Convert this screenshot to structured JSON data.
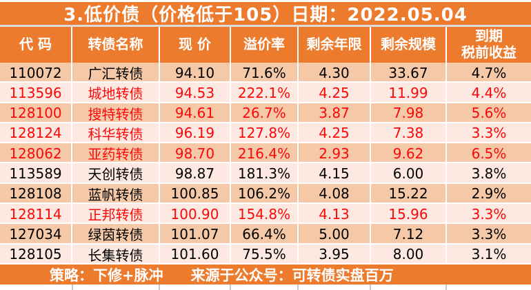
{
  "title": "3.低价债（价格低于105）日期：2022.05.04",
  "table": {
    "columns": [
      "代 码",
      "转债名称",
      "现 价",
      "溢价率",
      "剩余年限",
      "剩余规模",
      "到期\n税前收益"
    ],
    "rows": [
      {
        "code": "110072",
        "name": "广汇转债",
        "price": "94.10",
        "premium": "71.6%",
        "years": "4.30",
        "size": "33.67",
        "yield": "4.7%",
        "text": "black",
        "bg": "peach"
      },
      {
        "code": "113596",
        "name": "城地转债",
        "price": "94.53",
        "premium": "222.1%",
        "years": "4.25",
        "size": "11.99",
        "yield": "4.4%",
        "text": "red",
        "bg": "pink"
      },
      {
        "code": "128100",
        "name": "搜特转债",
        "price": "94.61",
        "premium": "26.7%",
        "years": "3.87",
        "size": "7.98",
        "yield": "5.6%",
        "text": "red",
        "bg": "peach"
      },
      {
        "code": "128124",
        "name": "科华转债",
        "price": "96.19",
        "premium": "127.8%",
        "years": "4.25",
        "size": "7.38",
        "yield": "3.3%",
        "text": "red",
        "bg": "pink"
      },
      {
        "code": "128062",
        "name": "亚药转债",
        "price": "98.70",
        "premium": "216.4%",
        "years": "2.93",
        "size": "9.62",
        "yield": "6.5%",
        "text": "red",
        "bg": "peach"
      },
      {
        "code": "113589",
        "name": "天创转债",
        "price": "98.87",
        "premium": "181.3%",
        "years": "4.15",
        "size": "6.00",
        "yield": "3.8%",
        "text": "black",
        "bg": "pink"
      },
      {
        "code": "128108",
        "name": "蓝帆转债",
        "price": "100.85",
        "premium": "106.2%",
        "years": "4.08",
        "size": "15.22",
        "yield": "2.9%",
        "text": "black",
        "bg": "peach"
      },
      {
        "code": "128114",
        "name": "正邦转债",
        "price": "100.90",
        "premium": "154.8%",
        "years": "4.13",
        "size": "15.96",
        "yield": "3.3%",
        "text": "red",
        "bg": "pink"
      },
      {
        "code": "127034",
        "name": "绿茵转债",
        "price": "101.07",
        "premium": "66.4%",
        "years": "5.00",
        "size": "7.12",
        "yield": "3.3%",
        "text": "black",
        "bg": "peach"
      },
      {
        "code": "128105",
        "name": "长集转债",
        "price": "101.60",
        "premium": "75.5%",
        "years": "3.95",
        "size": "8.00",
        "yield": "3.1%",
        "text": "black",
        "bg": "pink"
      }
    ]
  },
  "footer": {
    "strategy": "策略：下修+脉冲",
    "source": "来源于公众号：可转债实盘百万"
  },
  "colors": {
    "accent_orange": "#EC7B2E",
    "row_peach": "#F5C9A7",
    "row_pink": "#FDE9E1",
    "highlight_red": "#FB0808",
    "text_black": "#000000",
    "gridline_white": "#FFFFFF",
    "title_divider_grey": "#DCDCDC"
  }
}
